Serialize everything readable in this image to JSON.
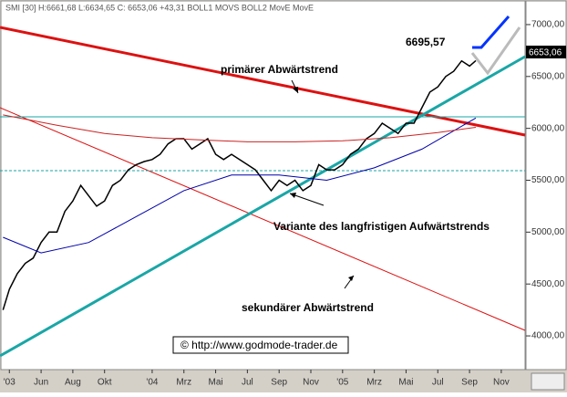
{
  "header": "SMI [30] H:6661,68 L:6634,65 C: 6653,06 +43,31 BOLL1 MOVS BOLL2 MovE MovE",
  "chart_data": {
    "type": "line",
    "annotations": {
      "high": "6695,57",
      "primary": "primärer Abwärtstrend",
      "variant": "Variante des langfristigen Aufwärtstrends",
      "secondary": "sekundärer Abwärtstrend",
      "copyright": "© http://www.godmode-trader.de",
      "last": "6653,06"
    },
    "xlim": [
      2.41,
      35.5
    ],
    "xticks": [
      {
        "value": 3,
        "label": "'03"
      },
      {
        "value": 5,
        "label": "Jun"
      },
      {
        "value": 7,
        "label": "Aug"
      },
      {
        "value": 9,
        "label": "Okt"
      },
      {
        "value": 12,
        "label": "'04"
      },
      {
        "value": 14,
        "label": "Mrz"
      },
      {
        "value": 16,
        "label": "Mai"
      },
      {
        "value": 18,
        "label": "Jul"
      },
      {
        "value": 20,
        "label": "Sep"
      },
      {
        "value": 22,
        "label": "Nov"
      },
      {
        "value": 24,
        "label": "'05"
      },
      {
        "value": 26,
        "label": "Mrz"
      },
      {
        "value": 28,
        "label": "Mai"
      },
      {
        "value": 30,
        "label": "Jul"
      },
      {
        "value": 32,
        "label": "Sep"
      },
      {
        "value": 34,
        "label": "Nov"
      }
    ],
    "ylim": [
      3675,
      7237
    ],
    "yticks": [
      {
        "value": 4000,
        "label": "4000,00"
      },
      {
        "value": 4500,
        "label": "4500,00"
      },
      {
        "value": 5000,
        "label": "5000,00"
      },
      {
        "value": 5500,
        "label": "5500,00"
      },
      {
        "value": 6000,
        "label": "6000,00"
      },
      {
        "value": 6500,
        "label": "6500,00"
      },
      {
        "value": 7000,
        "label": "7000,00"
      }
    ],
    "series": [
      {
        "color": "#000000",
        "x": [
          2.6,
          3,
          3.5,
          4,
          4.5,
          5,
          5.5,
          6,
          6.5,
          7,
          7.5,
          8,
          8.5,
          9,
          9.5,
          10,
          10.5,
          11,
          11.5,
          12,
          12.5,
          13,
          13.5,
          14,
          14.5,
          15,
          15.5,
          16,
          16.5,
          17,
          17.5,
          18,
          18.5,
          19,
          19.5,
          20,
          20.5,
          21,
          21.5,
          22,
          22.5,
          23,
          23.5,
          24,
          24.5,
          25,
          25.5,
          26,
          26.5,
          27,
          27.5,
          28,
          28.5,
          29,
          29.5,
          30,
          30.5,
          31,
          31.5,
          32,
          32.4
        ],
        "values": [
          4250,
          4450,
          4600,
          4700,
          4750,
          4900,
          5000,
          5000,
          5200,
          5300,
          5450,
          5350,
          5250,
          5300,
          5450,
          5500,
          5600,
          5650,
          5680,
          5700,
          5750,
          5850,
          5900,
          5900,
          5800,
          5850,
          5900,
          5750,
          5700,
          5750,
          5700,
          5650,
          5600,
          5500,
          5400,
          5500,
          5450,
          5500,
          5400,
          5450,
          5650,
          5600,
          5600,
          5650,
          5750,
          5800,
          5900,
          5950,
          6050,
          6000,
          5950,
          6050,
          6050,
          6200,
          6350,
          6400,
          6500,
          6550,
          6650,
          6600,
          6653.06
        ]
      },
      {
        "color": "#0000aa",
        "x": [
          2.6,
          5,
          8,
          11,
          14,
          17,
          20,
          23,
          26,
          29,
          32.4
        ],
        "values": [
          4950,
          4800,
          4900,
          5150,
          5400,
          5550,
          5550,
          5500,
          5620,
          5800,
          6100
        ]
      },
      {
        "color": "#cc2222",
        "x": [
          2.6,
          6,
          9,
          12,
          15,
          18,
          21,
          24,
          27,
          30,
          32.4
        ],
        "values": [
          6130,
          6030,
          5950,
          5910,
          5890,
          5870,
          5870,
          5880,
          5910,
          5960,
          6010
        ]
      }
    ]
  }
}
